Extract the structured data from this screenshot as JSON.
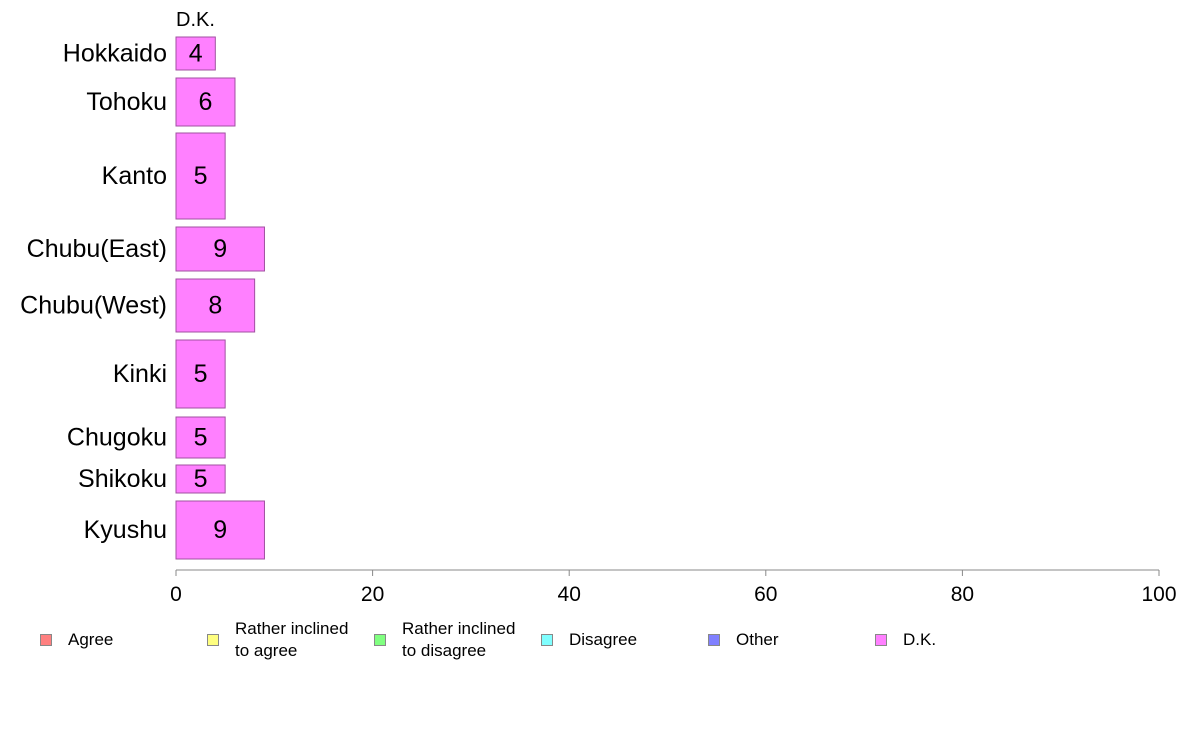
{
  "chart_data": {
    "type": "bar",
    "orientation": "horizontal",
    "stacked": true,
    "series_title": "D.K.",
    "categories": [
      "Hokkaido",
      "Tohoku",
      "Kanto",
      "Chubu(East)",
      "Chubu(West)",
      "Kinki",
      "Chugoku",
      "Shikoku",
      "Kyushu"
    ],
    "series": [
      {
        "name": "D.K.",
        "color": "#ff80ff",
        "values": [
          4,
          6,
          5,
          9,
          8,
          5,
          5,
          5,
          9
        ]
      }
    ],
    "xlim": [
      0,
      100
    ],
    "xticks": [
      "0",
      "20",
      "40",
      "60",
      "80",
      "100"
    ],
    "grid": false,
    "legend_placement": "bottom"
  },
  "legend": {
    "items": [
      {
        "label": "Agree",
        "color": "#ff8080"
      },
      {
        "label": "Rather inclined\nto agree",
        "color": "#ffff80"
      },
      {
        "label": "Rather inclined\nto disagree",
        "color": "#80ff80"
      },
      {
        "label": "Disagree",
        "color": "#80ffff"
      },
      {
        "label": "Other",
        "color": "#8080ff"
      },
      {
        "label": "D.K.",
        "color": "#ff80ff"
      }
    ]
  }
}
